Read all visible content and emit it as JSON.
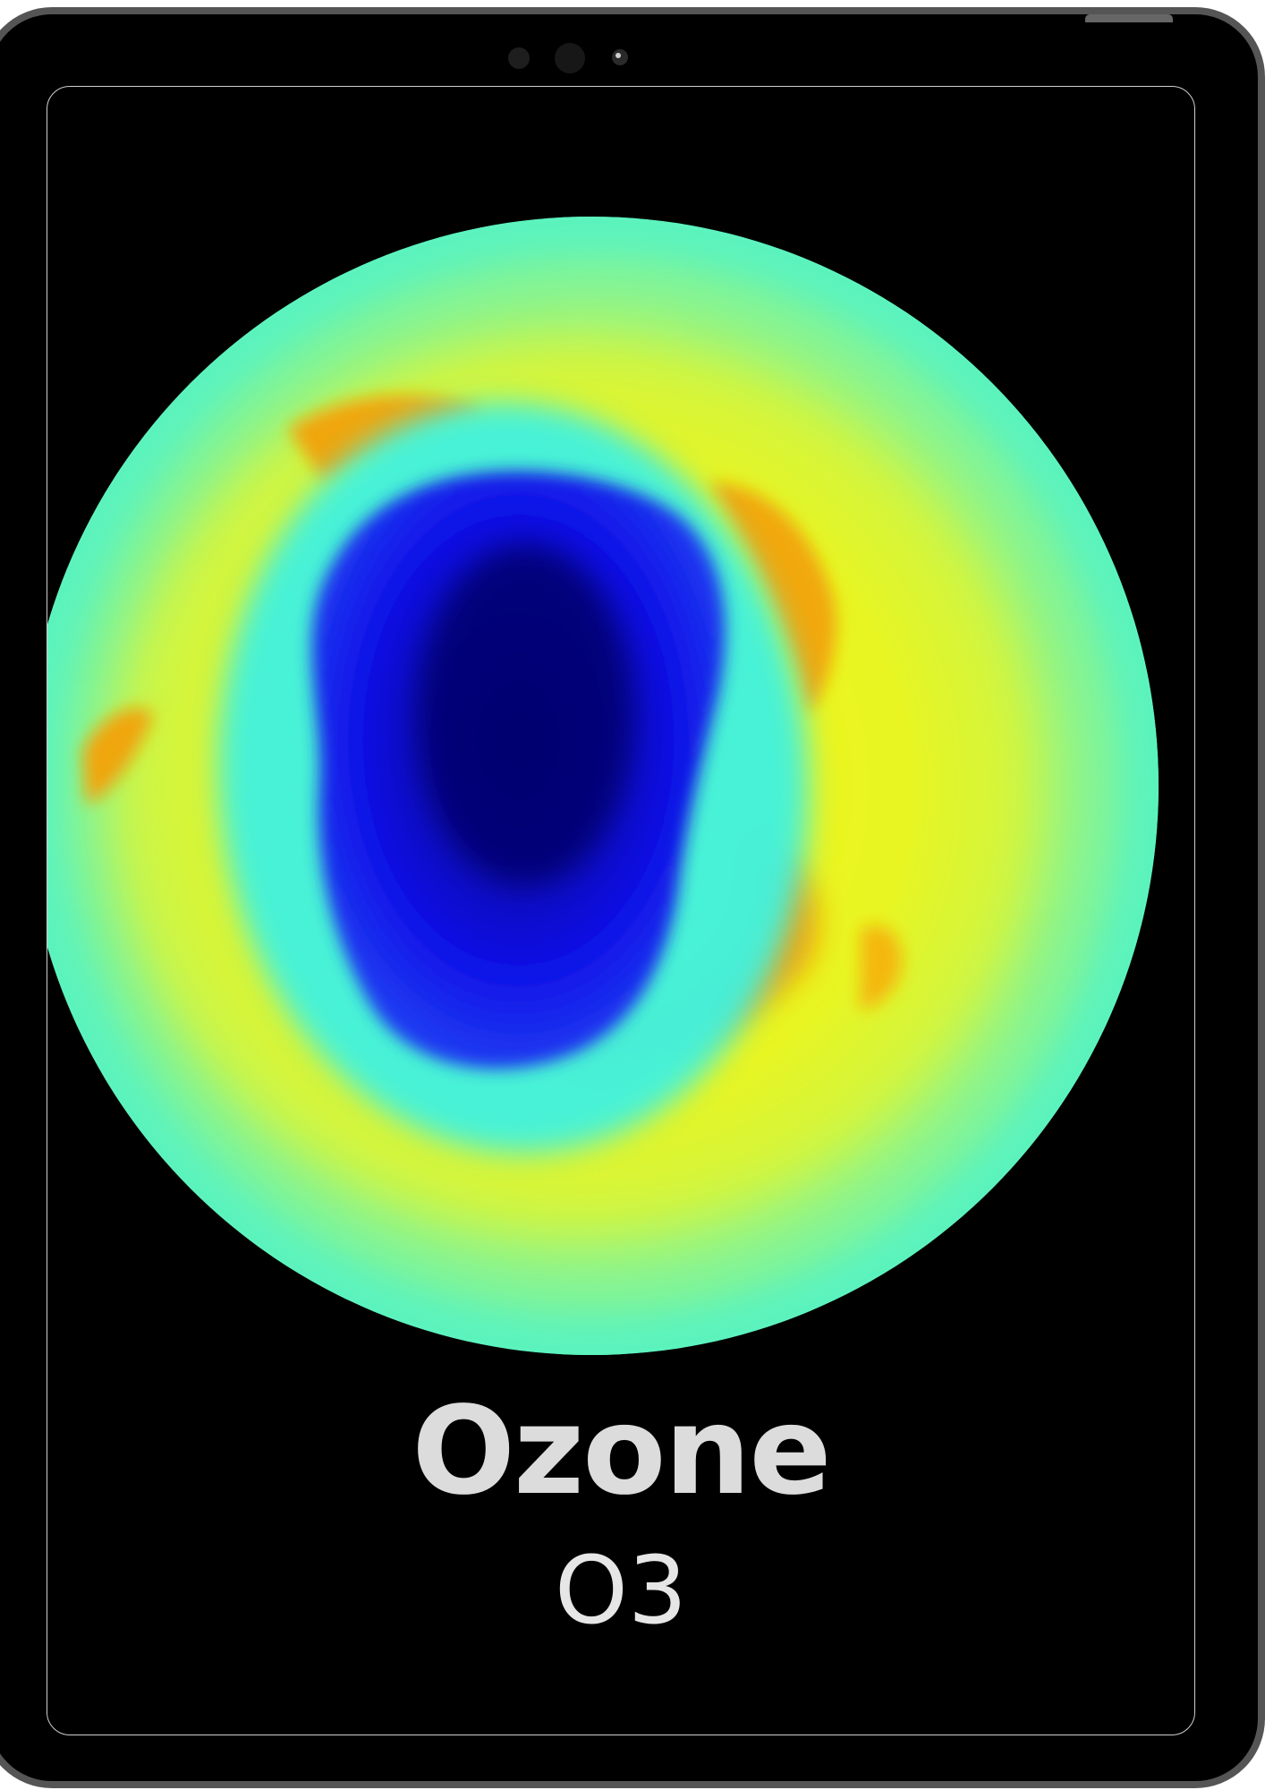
{
  "title": "Ozone",
  "formula": "O3",
  "colors": {
    "bezel": "#555555",
    "screen_background": "#000000",
    "text_title": "#dcdcdc",
    "text_formula": "#e6e6e6",
    "map_outer": "#5cf3be",
    "map_mid": "#f3f41c",
    "map_high": "#f1a80b",
    "map_low": "#0f12e6",
    "map_lowest": "#05007a"
  },
  "icons": {
    "camera_cluster": [
      "sensor-dot-icon",
      "front-camera-icon",
      "flash-icon"
    ]
  }
}
